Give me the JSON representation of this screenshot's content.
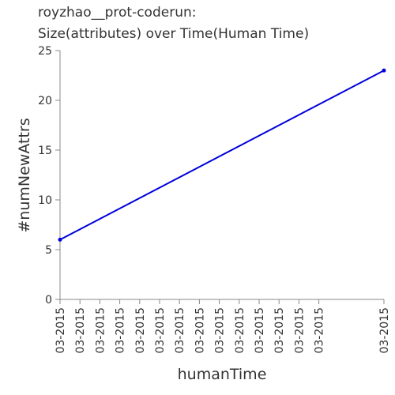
{
  "chart_data": {
    "type": "line",
    "title_lines": [
      "royzhao__prot-coderun:",
      "Size(attributes) over Time(Human Time)"
    ],
    "xlabel": "humanTime",
    "ylabel": "#numNewAttrs",
    "x_tick_labels": [
      "03-2015",
      "03-2015",
      "03-2015",
      "03-2015",
      "03-2015",
      "03-2015",
      "03-2015",
      "03-2015",
      "03-2015",
      "03-2015",
      "03-2015",
      "03-2015",
      "03-2015",
      "03-2015",
      "03-2015"
    ],
    "y_ticks": [
      0,
      5,
      10,
      15,
      20,
      25
    ],
    "ylim": [
      0,
      25
    ],
    "grid": false,
    "series": [
      {
        "values": [
          6,
          23
        ],
        "color": "#0000dd"
      }
    ]
  }
}
